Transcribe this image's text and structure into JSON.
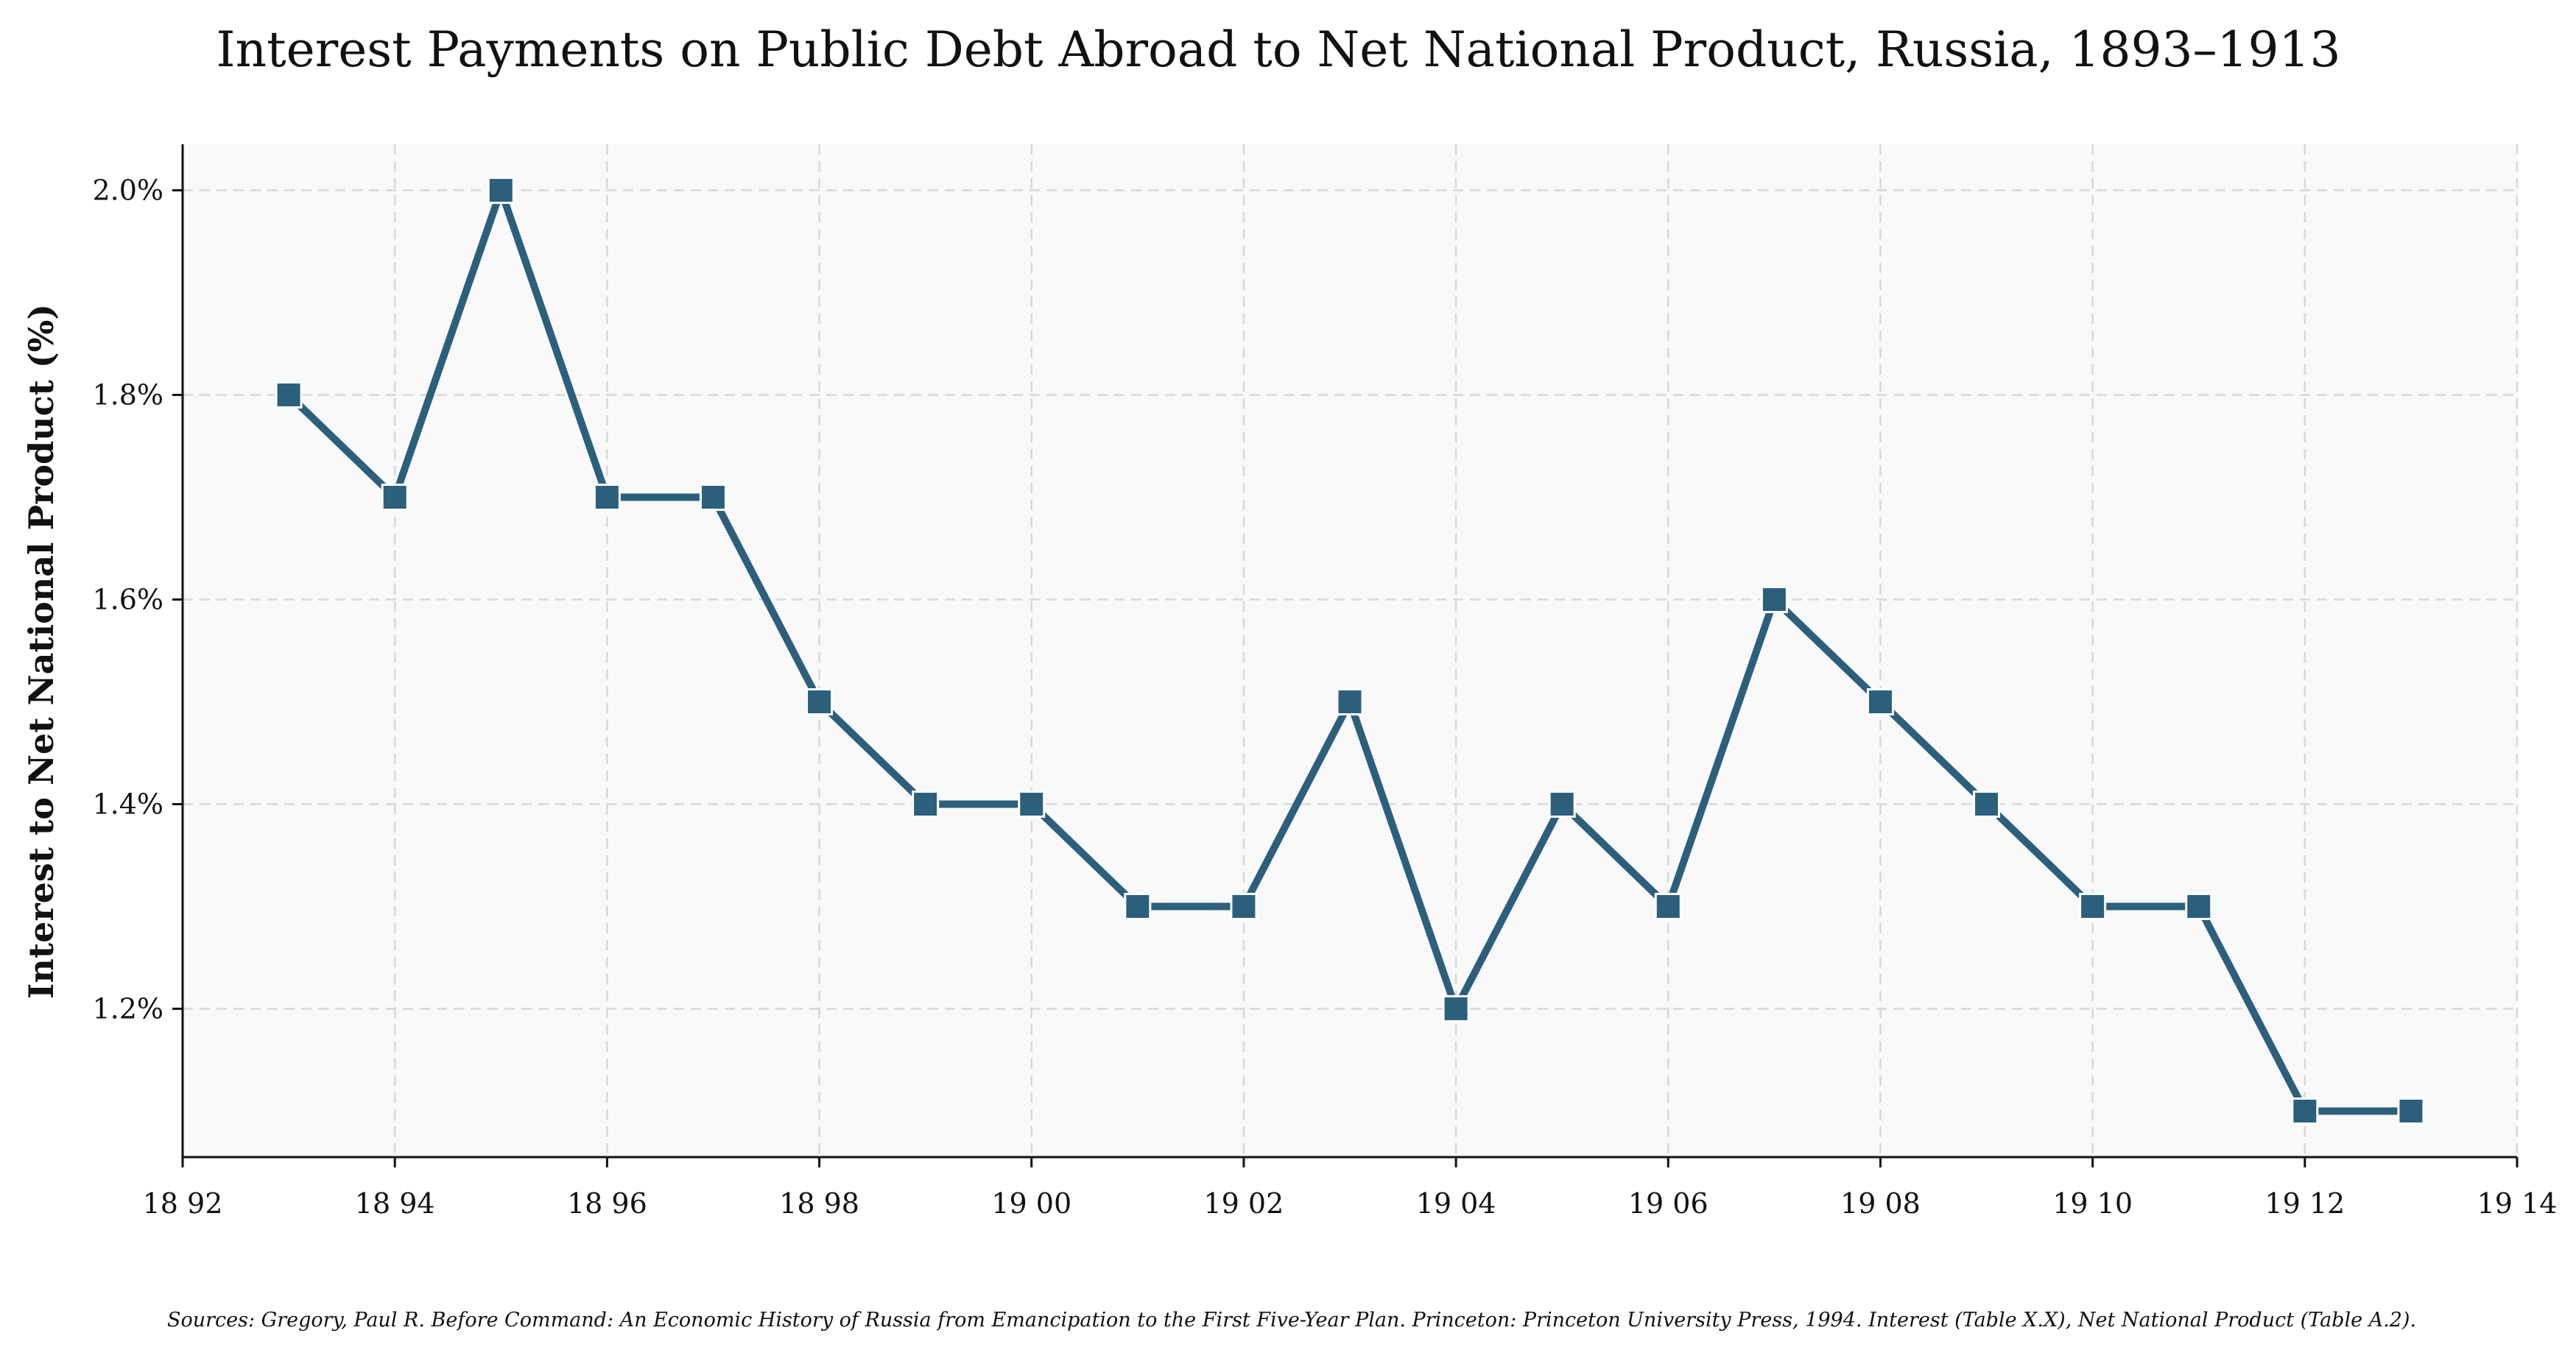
{
  "chart_data": {
    "type": "line",
    "title": "Interest Payments on Public Debt Abroad to Net National Product, Russia, 1893–1913",
    "xlabel": "",
    "ylabel": "Interest to Net National Product (%)",
    "x": [
      1893,
      1894,
      1895,
      1896,
      1897,
      1898,
      1899,
      1900,
      1901,
      1902,
      1903,
      1904,
      1905,
      1906,
      1907,
      1908,
      1909,
      1910,
      1911,
      1912,
      1913
    ],
    "series": [
      {
        "values": [
          1.8,
          1.7,
          2.0,
          1.7,
          1.7,
          1.5,
          1.4,
          1.4,
          1.3,
          1.3,
          1.5,
          1.2,
          1.4,
          1.3,
          1.6,
          1.5,
          1.4,
          1.3,
          1.3,
          1.1,
          1.1
        ]
      }
    ],
    "xlim": [
      1892,
      1914
    ],
    "ylim": [
      1.055,
      2.045
    ],
    "x_ticks": [
      1892,
      1894,
      1896,
      1898,
      1900,
      1902,
      1904,
      1906,
      1908,
      1910,
      1912,
      1914
    ],
    "x_tick_labels": [
      "18 92",
      "18 94",
      "18 96",
      "18 98",
      "19 00",
      "19 02",
      "19 04",
      "19 06",
      "19 08",
      "19 10",
      "19 12",
      "19 14"
    ],
    "y_ticks": [
      1.2,
      1.4,
      1.6,
      1.8,
      2.0
    ],
    "y_tick_labels": [
      "1.2%",
      "1.4%",
      "1.6%",
      "1.8%",
      "2.0%"
    ],
    "grid": true,
    "line_color": "#2c5f7c",
    "marker": "square",
    "plot_background": "#f9f9f9",
    "source": "Sources: Gregory, Paul R. Before Command: An Economic History of Russia from Emancipation to the First Five-Year Plan. Princeton: Princeton University Press, 1994. Interest (Table X.X), Net National Product (Table A.2)."
  }
}
